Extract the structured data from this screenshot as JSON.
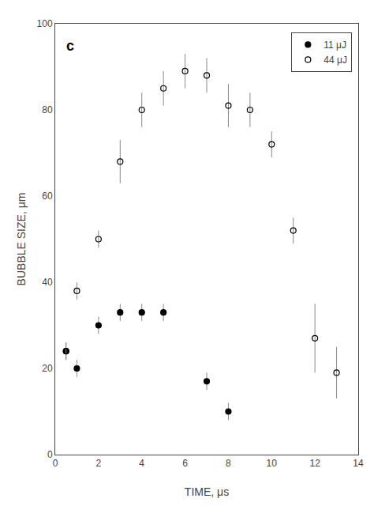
{
  "chart_data": {
    "type": "scatter",
    "xlabel": "TIME, μs",
    "ylabel": "BUBBLE SIZE, μm",
    "xlim": [
      0,
      14
    ],
    "ylim": [
      0,
      100
    ],
    "xticks": [
      0,
      2,
      4,
      6,
      8,
      10,
      12,
      14
    ],
    "yticks": [
      0,
      20,
      40,
      60,
      80,
      100
    ],
    "grid": false,
    "legend": "upper right",
    "annotations": [
      "c"
    ],
    "series": [
      {
        "name": "11 μJ",
        "color": "#000000",
        "marker": "circle",
        "x": [
          0.5,
          1,
          2,
          3,
          4,
          5,
          7,
          8
        ],
        "values": [
          24,
          20,
          30,
          33,
          33,
          33,
          17,
          10
        ],
        "yerr": [
          2,
          2,
          2,
          2,
          2,
          2,
          2,
          2
        ]
      },
      {
        "name": "44 μJ",
        "color": "#000000",
        "marker": "circle-open",
        "x": [
          0.5,
          1,
          2,
          3,
          4,
          5,
          6,
          7,
          8,
          9,
          10,
          11,
          12,
          13
        ],
        "values": [
          24,
          38,
          50,
          68,
          80,
          85,
          89,
          88,
          81,
          80,
          72,
          52,
          27,
          19
        ],
        "yerr": [
          2,
          2,
          2,
          5,
          4,
          4,
          4,
          4,
          5,
          4,
          3,
          3,
          8,
          6
        ]
      }
    ]
  }
}
